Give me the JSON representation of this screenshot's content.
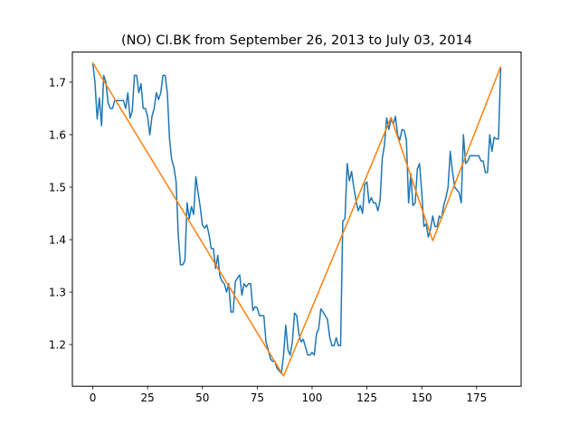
{
  "chart_data": {
    "type": "line",
    "title": "(NO) CI.BK from September 26, 2013 to July 03, 2014",
    "xlabel": "",
    "ylabel": "",
    "xlim": [
      -9.3,
      195.3
    ],
    "ylim": [
      1.1205,
      1.7575
    ],
    "xticks": [
      0,
      25,
      50,
      75,
      100,
      125,
      150,
      175
    ],
    "yticks": [
      1.2,
      1.3,
      1.4,
      1.5,
      1.6,
      1.7
    ],
    "grid": false,
    "series": [
      {
        "color": "#1f77b4",
        "points": [
          [
            0,
            1.737
          ],
          [
            1,
            1.7
          ],
          [
            2,
            1.63
          ],
          [
            3,
            1.67
          ],
          [
            4,
            1.617
          ],
          [
            5,
            1.713
          ],
          [
            6,
            1.7
          ],
          [
            7,
            1.66
          ],
          [
            8,
            1.65
          ],
          [
            9,
            1.65
          ],
          [
            10,
            1.665
          ],
          [
            11,
            1.665
          ],
          [
            12,
            1.665
          ],
          [
            13,
            1.665
          ],
          [
            14,
            1.665
          ],
          [
            15,
            1.65
          ],
          [
            16,
            1.68
          ],
          [
            17,
            1.632
          ],
          [
            18,
            1.645
          ],
          [
            19,
            1.713
          ],
          [
            20,
            1.713
          ],
          [
            21,
            1.68
          ],
          [
            22,
            1.697
          ],
          [
            23,
            1.65
          ],
          [
            24,
            1.65
          ],
          [
            25,
            1.635
          ],
          [
            26,
            1.6
          ],
          [
            27,
            1.635
          ],
          [
            28,
            1.65
          ],
          [
            29,
            1.68
          ],
          [
            30,
            1.667
          ],
          [
            31,
            1.68
          ],
          [
            32,
            1.713
          ],
          [
            33,
            1.713
          ],
          [
            34,
            1.68
          ],
          [
            35,
            1.592
          ],
          [
            36,
            1.552
          ],
          [
            37,
            1.538
          ],
          [
            38,
            1.51
          ],
          [
            39,
            1.407
          ],
          [
            40,
            1.352
          ],
          [
            41,
            1.352
          ],
          [
            42,
            1.36
          ],
          [
            43,
            1.47
          ],
          [
            44,
            1.44
          ],
          [
            45,
            1.463
          ],
          [
            46,
            1.448
          ],
          [
            47,
            1.52
          ],
          [
            48,
            1.49
          ],
          [
            49,
            1.462
          ],
          [
            50,
            1.428
          ],
          [
            51,
            1.422
          ],
          [
            52,
            1.428
          ],
          [
            53,
            1.41
          ],
          [
            54,
            1.383
          ],
          [
            55,
            1.383
          ],
          [
            56,
            1.345
          ],
          [
            57,
            1.37
          ],
          [
            58,
            1.33
          ],
          [
            59,
            1.32
          ],
          [
            60,
            1.316
          ],
          [
            61,
            1.3
          ],
          [
            62,
            1.316
          ],
          [
            63,
            1.262
          ],
          [
            64,
            1.262
          ],
          [
            65,
            1.32
          ],
          [
            66,
            1.327
          ],
          [
            67,
            1.333
          ],
          [
            68,
            1.294
          ],
          [
            69,
            1.316
          ],
          [
            70,
            1.31
          ],
          [
            71,
            1.316
          ],
          [
            72,
            1.316
          ],
          [
            73,
            1.265
          ],
          [
            74,
            1.272
          ],
          [
            75,
            1.27
          ],
          [
            76,
            1.255
          ],
          [
            77,
            1.255
          ],
          [
            78,
            1.255
          ],
          [
            79,
            1.205
          ],
          [
            80,
            1.19
          ],
          [
            81,
            1.173
          ],
          [
            82,
            1.168
          ],
          [
            83,
            1.168
          ],
          [
            84,
            1.155
          ],
          [
            85,
            1.15
          ],
          [
            86,
            1.145
          ],
          [
            87,
            1.18
          ],
          [
            88,
            1.237
          ],
          [
            89,
            1.19
          ],
          [
            90,
            1.18
          ],
          [
            91,
            1.205
          ],
          [
            92,
            1.26
          ],
          [
            93,
            1.255
          ],
          [
            94,
            1.22
          ],
          [
            95,
            1.205
          ],
          [
            96,
            1.21
          ],
          [
            97,
            1.195
          ],
          [
            98,
            1.18
          ],
          [
            99,
            1.18
          ],
          [
            100,
            1.185
          ],
          [
            101,
            1.18
          ],
          [
            102,
            1.22
          ],
          [
            103,
            1.23
          ],
          [
            104,
            1.268
          ],
          [
            105,
            1.262
          ],
          [
            106,
            1.255
          ],
          [
            107,
            1.248
          ],
          [
            108,
            1.215
          ],
          [
            109,
            1.198
          ],
          [
            110,
            1.198
          ],
          [
            111,
            1.213
          ],
          [
            112,
            1.198
          ],
          [
            113,
            1.198
          ],
          [
            114,
            1.435
          ],
          [
            115,
            1.44
          ],
          [
            116,
            1.545
          ],
          [
            117,
            1.512
          ],
          [
            118,
            1.53
          ],
          [
            119,
            1.5
          ],
          [
            120,
            1.475
          ],
          [
            121,
            1.455
          ],
          [
            122,
            1.465
          ],
          [
            123,
            1.45
          ],
          [
            124,
            1.505
          ],
          [
            125,
            1.51
          ],
          [
            126,
            1.47
          ],
          [
            127,
            1.48
          ],
          [
            128,
            1.47
          ],
          [
            129,
            1.47
          ],
          [
            130,
            1.455
          ],
          [
            131,
            1.475
          ],
          [
            132,
            1.555
          ],
          [
            133,
            1.58
          ],
          [
            134,
            1.632
          ],
          [
            135,
            1.61
          ],
          [
            136,
            1.63
          ],
          [
            137,
            1.62
          ],
          [
            138,
            1.635
          ],
          [
            139,
            1.6
          ],
          [
            140,
            1.59
          ],
          [
            141,
            1.61
          ],
          [
            142,
            1.608
          ],
          [
            143,
            1.59
          ],
          [
            144,
            1.47
          ],
          [
            145,
            1.525
          ],
          [
            146,
            1.465
          ],
          [
            147,
            1.47
          ],
          [
            148,
            1.535
          ],
          [
            149,
            1.545
          ],
          [
            150,
            1.49
          ],
          [
            151,
            1.425
          ],
          [
            152,
            1.43
          ],
          [
            153,
            1.405
          ],
          [
            154,
            1.42
          ],
          [
            155,
            1.445
          ],
          [
            156,
            1.425
          ],
          [
            157,
            1.425
          ],
          [
            158,
            1.445
          ],
          [
            159,
            1.44
          ],
          [
            160,
            1.465
          ],
          [
            161,
            1.48
          ],
          [
            162,
            1.5
          ],
          [
            163,
            1.568
          ],
          [
            164,
            1.53
          ],
          [
            165,
            1.5
          ],
          [
            166,
            1.495
          ],
          [
            167,
            1.49
          ],
          [
            168,
            1.47
          ],
          [
            169,
            1.6
          ],
          [
            170,
            1.545
          ],
          [
            171,
            1.55
          ],
          [
            172,
            1.56
          ],
          [
            173,
            1.56
          ],
          [
            174,
            1.56
          ],
          [
            175,
            1.56
          ],
          [
            176,
            1.56
          ],
          [
            177,
            1.55
          ],
          [
            178,
            1.55
          ],
          [
            179,
            1.528
          ],
          [
            180,
            1.528
          ],
          [
            181,
            1.6
          ],
          [
            182,
            1.568
          ],
          [
            183,
            1.595
          ],
          [
            184,
            1.592
          ],
          [
            185,
            1.592
          ],
          [
            186,
            1.728
          ]
        ]
      },
      {
        "color": "#ff7f0e",
        "points": [
          [
            0,
            1.737
          ],
          [
            87,
            1.14
          ],
          [
            136,
            1.633
          ],
          [
            155,
            1.398
          ],
          [
            186,
            1.73
          ]
        ]
      }
    ]
  }
}
